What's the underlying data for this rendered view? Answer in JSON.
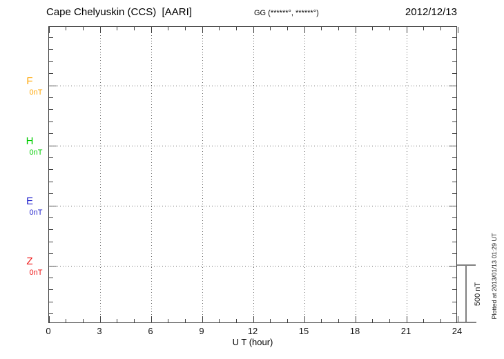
{
  "header": {
    "station_title": "Cape Chelyuskin (CCS)  [AARI]",
    "coordinates": "GG (******°, ******°)",
    "date": "2012/12/13"
  },
  "chart_data": {
    "type": "line",
    "title": "Cape Chelyuskin (CCS) [AARI] magnetogram",
    "xlabel": "U T (hour)",
    "x_range": [
      0,
      24
    ],
    "x_minor_step_hours": 1,
    "x_major_step_hours": 3,
    "x_major_tick_labels": [
      "0",
      "3",
      "6",
      "9",
      "12",
      "15",
      "18",
      "21",
      "24"
    ],
    "x_gridline_hours": [
      3,
      6,
      9,
      12,
      15,
      18,
      21
    ],
    "grid_style": "dotted",
    "series": [
      {
        "name": "F",
        "baseline_label": "0nT",
        "baseline_value_nt": 0,
        "color": "#FFA500",
        "values": []
      },
      {
        "name": "H",
        "baseline_label": "0nT",
        "baseline_value_nt": 0,
        "color": "#00CC00",
        "values": []
      },
      {
        "name": "E",
        "baseline_label": "0nT",
        "baseline_value_nt": 0,
        "color": "#2222CC",
        "values": []
      },
      {
        "name": "Z",
        "baseline_label": "0nT",
        "baseline_value_nt": 0,
        "color": "#EE1111",
        "values": []
      }
    ],
    "y_minor_tick_nt": 100,
    "scale_bar": {
      "label": "500 nT",
      "value_nt": 500
    },
    "footer": "Plotted at 2013/01/13 01:29 UT"
  }
}
